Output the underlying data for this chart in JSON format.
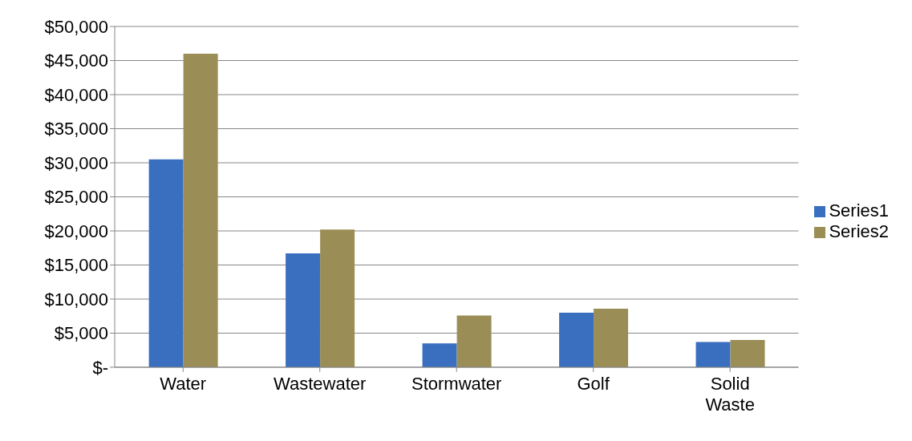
{
  "chart_data": {
    "type": "bar",
    "categories": [
      "Water",
      "Wastewater",
      "Stormwater",
      "Golf",
      "Solid Waste"
    ],
    "series": [
      {
        "name": "Series1",
        "color": "#3a6fc0",
        "values": [
          30500,
          16700,
          3500,
          8000,
          3700
        ]
      },
      {
        "name": "Series2",
        "color": "#9a8e56",
        "values": [
          46000,
          20200,
          7600,
          8600,
          4000
        ]
      }
    ],
    "ylim": [
      0,
      50000
    ],
    "yticks": [
      {
        "value": 0,
        "label": "$-"
      },
      {
        "value": 5000,
        "label": "$5,000"
      },
      {
        "value": 10000,
        "label": "$10,000"
      },
      {
        "value": 15000,
        "label": "$15,000"
      },
      {
        "value": 20000,
        "label": "$20,000"
      },
      {
        "value": 25000,
        "label": "$25,000"
      },
      {
        "value": 30000,
        "label": "$30,000"
      },
      {
        "value": 35000,
        "label": "$35,000"
      },
      {
        "value": 40000,
        "label": "$40,000"
      },
      {
        "value": 45000,
        "label": "$45,000"
      },
      {
        "value": 50000,
        "label": "$50,000"
      }
    ],
    "grid": "y",
    "legend": "right"
  }
}
